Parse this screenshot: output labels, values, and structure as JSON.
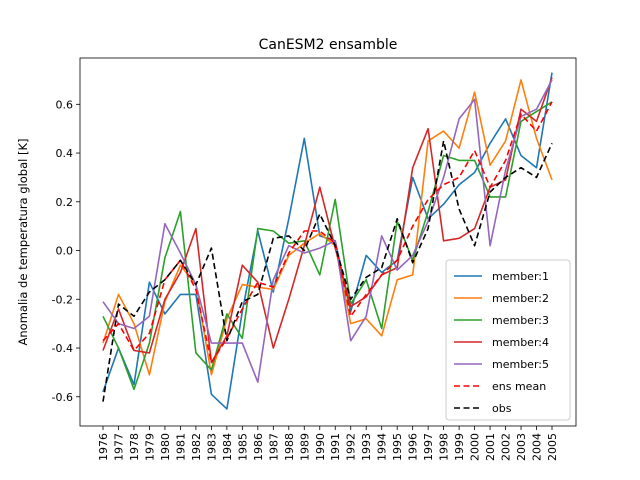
{
  "chart_data": {
    "type": "line",
    "title": "CanESM2 ensamble",
    "xlabel": "",
    "ylabel": "Anomalia de temperatura global [K]",
    "categories": [
      "1976",
      "1977",
      "1978",
      "1979",
      "1980",
      "1981",
      "1982",
      "1983",
      "1984",
      "1985",
      "1986",
      "1987",
      "1988",
      "1989",
      "1990",
      "1991",
      "1992",
      "1993",
      "1994",
      "1995",
      "1996",
      "1997",
      "1998",
      "1999",
      "2000",
      "2001",
      "2002",
      "2003",
      "2004",
      "2005"
    ],
    "ylim": [
      -0.72,
      0.79
    ],
    "yticks": [
      "-0.6",
      "-0.4",
      "-0.2",
      "0.0",
      "0.2",
      "0.4",
      "0.6"
    ],
    "ytick_values": [
      -0.6,
      -0.4,
      -0.2,
      0.0,
      0.2,
      0.4,
      0.6
    ],
    "grid": false,
    "legend_position": "lower-right",
    "series": [
      {
        "name": "member:1",
        "color": "#1f77b4",
        "dash": "solid",
        "values": [
          -0.58,
          -0.4,
          -0.55,
          -0.13,
          -0.26,
          -0.18,
          -0.18,
          -0.59,
          -0.65,
          -0.25,
          0.08,
          -0.17,
          0.13,
          0.46,
          0.06,
          0.04,
          -0.25,
          -0.02,
          -0.09,
          -0.04,
          0.3,
          0.13,
          0.19,
          0.27,
          0.32,
          0.44,
          0.54,
          0.39,
          0.34,
          0.73
        ]
      },
      {
        "name": "member:2",
        "color": "#ff7f0e",
        "dash": "solid",
        "values": [
          -0.38,
          -0.18,
          -0.3,
          -0.51,
          -0.21,
          -0.06,
          -0.14,
          -0.51,
          -0.28,
          -0.14,
          -0.15,
          -0.16,
          -0.02,
          0.03,
          0.07,
          0.02,
          -0.3,
          -0.28,
          -0.35,
          -0.12,
          -0.1,
          0.45,
          0.49,
          0.42,
          0.65,
          0.35,
          0.45,
          0.7,
          0.46,
          0.29
        ]
      },
      {
        "name": "member:3",
        "color": "#2ca02c",
        "dash": "solid",
        "values": [
          -0.27,
          -0.4,
          -0.57,
          -0.38,
          -0.03,
          0.16,
          -0.42,
          -0.49,
          -0.26,
          -0.36,
          0.09,
          0.08,
          0.03,
          0.04,
          -0.1,
          0.21,
          -0.22,
          -0.12,
          -0.32,
          0.12,
          -0.04,
          0.16,
          0.39,
          0.37,
          0.37,
          0.22,
          0.22,
          0.53,
          0.57,
          0.61
        ]
      },
      {
        "name": "member:4",
        "color": "#d62728",
        "dash": "solid",
        "values": [
          -0.41,
          -0.24,
          -0.41,
          -0.42,
          -0.2,
          -0.09,
          0.09,
          -0.46,
          -0.35,
          -0.06,
          -0.13,
          -0.4,
          -0.2,
          0.02,
          0.26,
          0.01,
          -0.23,
          -0.19,
          -0.1,
          -0.07,
          0.34,
          0.5,
          0.04,
          0.05,
          0.09,
          0.26,
          0.29,
          0.58,
          0.53,
          0.71
        ]
      },
      {
        "name": "member:5",
        "color": "#9467bd",
        "dash": "solid",
        "values": [
          -0.21,
          -0.3,
          -0.32,
          -0.27,
          0.11,
          -0.01,
          -0.14,
          -0.38,
          -0.38,
          -0.38,
          -0.54,
          -0.12,
          0.02,
          -0.01,
          0.01,
          0.04,
          -0.37,
          -0.27,
          0.06,
          -0.08,
          -0.02,
          0.12,
          0.3,
          0.54,
          0.62,
          0.02,
          0.33,
          0.55,
          0.58,
          0.7
        ]
      },
      {
        "name": "ens mean",
        "color": "#ff0000",
        "dash": "dashed",
        "values": [
          -0.37,
          -0.3,
          -0.41,
          -0.34,
          -0.12,
          -0.04,
          -0.16,
          -0.46,
          -0.36,
          -0.24,
          -0.13,
          -0.15,
          -0.01,
          0.08,
          0.08,
          0.03,
          -0.27,
          -0.18,
          -0.1,
          -0.04,
          0.1,
          0.21,
          0.27,
          0.3,
          0.41,
          0.26,
          0.37,
          0.56,
          0.49,
          0.61
        ]
      },
      {
        "name": "obs",
        "color": "#000000",
        "dash": "dashed",
        "values": [
          -0.62,
          -0.22,
          -0.27,
          -0.17,
          -0.12,
          -0.04,
          -0.14,
          0.01,
          -0.37,
          -0.21,
          -0.18,
          0.05,
          0.06,
          0.0,
          0.15,
          0.02,
          -0.2,
          -0.11,
          -0.07,
          0.13,
          -0.05,
          0.09,
          0.45,
          0.17,
          0.02,
          0.24,
          0.3,
          0.34,
          0.3,
          0.44
        ]
      }
    ]
  }
}
